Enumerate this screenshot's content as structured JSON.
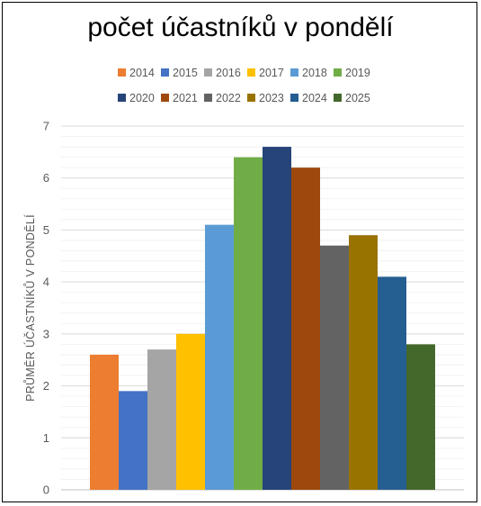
{
  "chart_data": {
    "type": "bar",
    "title": "počet účastníků v pondělí",
    "xlabel": "",
    "ylabel": "PRŮMĚR ÚČASTNÍKŮ V PONDĚLÍ",
    "ylim": [
      0,
      7
    ],
    "yticks": [
      "0",
      "1",
      "2",
      "3",
      "4",
      "5",
      "6",
      "7"
    ],
    "grid": true,
    "legend_position": "top",
    "series": [
      {
        "name": "2014",
        "value": 2.6,
        "color": "#ED7D31"
      },
      {
        "name": "2015",
        "value": 1.9,
        "color": "#4472C4"
      },
      {
        "name": "2016",
        "value": 2.7,
        "color": "#A5A5A5"
      },
      {
        "name": "2017",
        "value": 3.0,
        "color": "#FFC000"
      },
      {
        "name": "2018",
        "value": 5.1,
        "color": "#5B9BD5"
      },
      {
        "name": "2019",
        "value": 6.4,
        "color": "#70AD47"
      },
      {
        "name": "2020",
        "value": 6.6,
        "color": "#264478"
      },
      {
        "name": "2021",
        "value": 6.2,
        "color": "#9E480E"
      },
      {
        "name": "2022",
        "value": 4.7,
        "color": "#636363"
      },
      {
        "name": "2023",
        "value": 4.9,
        "color": "#997300"
      },
      {
        "name": "2024",
        "value": 4.1,
        "color": "#255E91"
      },
      {
        "name": "2025",
        "value": 2.8,
        "color": "#43682B"
      }
    ]
  }
}
